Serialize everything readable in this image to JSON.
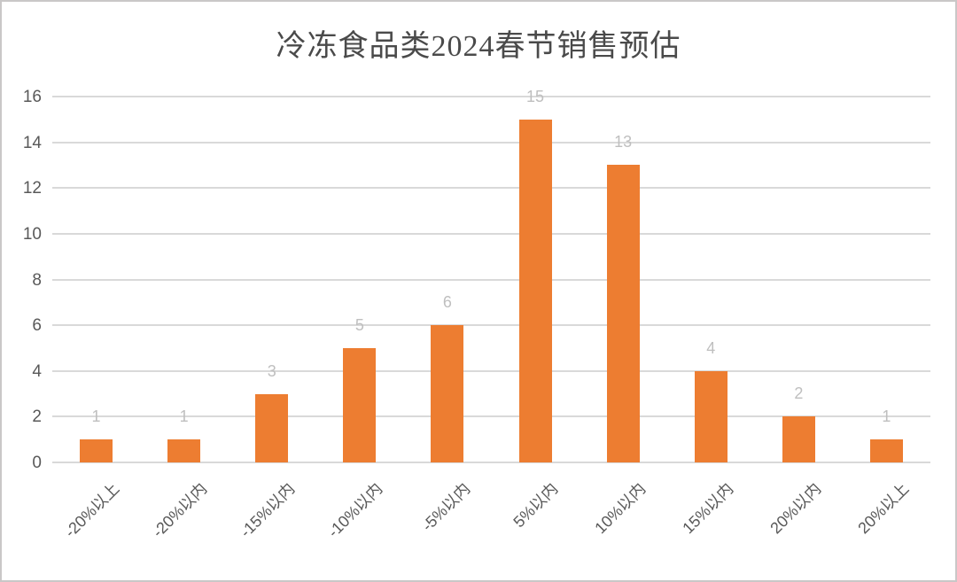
{
  "frame": {
    "background": "#ffffff",
    "border_color": "#c9c7c7"
  },
  "chart_data": {
    "type": "bar",
    "title": "冷冻食品类2024春节销售预估",
    "categories": [
      "-20%以上",
      "-20%以内",
      "-15%以内",
      "-10%以内",
      "-5%以内",
      "5%以内",
      "10%以内",
      "15%以内",
      "20%以内",
      "20%以上"
    ],
    "values": [
      1,
      1,
      3,
      5,
      6,
      15,
      13,
      4,
      2,
      1
    ],
    "data_labels_shown": true,
    "xlabel": "",
    "ylabel": "",
    "ylim": [
      0,
      16
    ],
    "yticks": [
      0,
      2,
      4,
      6,
      8,
      10,
      12,
      14,
      16
    ],
    "grid": "horizontal",
    "legend": "none",
    "colors": {
      "bar": "#ed7d31",
      "gridline": "#d9d9d9",
      "axis_tick_label": "#595959",
      "category_label": "#595959",
      "data_label": "#bfbfbf",
      "title": "#4a4a4a"
    }
  }
}
